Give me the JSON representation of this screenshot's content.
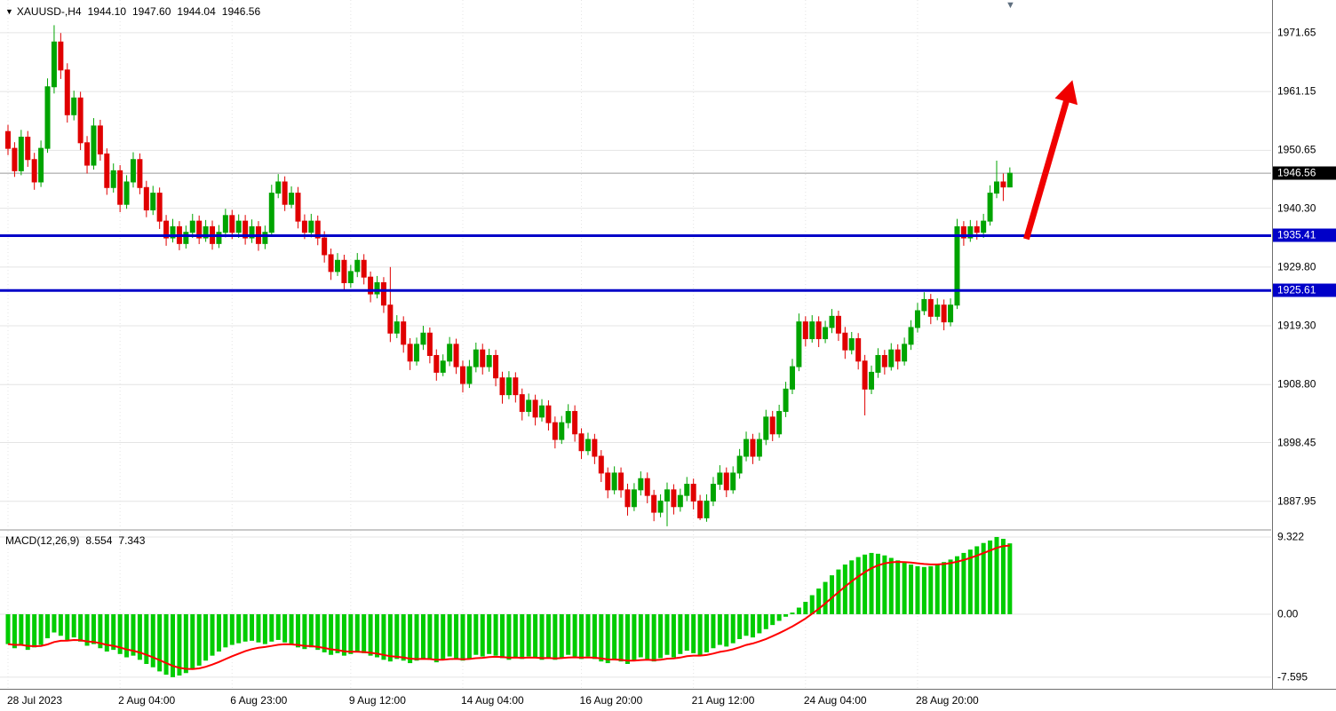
{
  "header": {
    "collapse_icon": "▼",
    "shift_icon": "▼",
    "symbol_period": "XAUUSD-,H4",
    "open": "1944.10",
    "high": "1947.60",
    "low": "1944.04",
    "close": "1946.56"
  },
  "chart_data": {
    "type": "candlestick",
    "symbol": "XAUUSD-",
    "timeframe": "H4",
    "ylim": [
      1883.0,
      1977.5
    ],
    "price_ticks": [
      {
        "label": "1971.65",
        "value": 1971.65
      },
      {
        "label": "1961.15",
        "value": 1961.15
      },
      {
        "label": "1950.65",
        "value": 1950.65
      },
      {
        "label": "1940.30",
        "value": 1940.3
      },
      {
        "label": "1929.80",
        "value": 1929.8
      },
      {
        "label": "1919.30",
        "value": 1919.3
      },
      {
        "label": "1908.80",
        "value": 1908.8
      },
      {
        "label": "1898.45",
        "value": 1898.45
      },
      {
        "label": "1887.95",
        "value": 1887.95
      }
    ],
    "current_price": {
      "label": "1946.56",
      "value": 1946.56
    },
    "horizontal_levels": [
      {
        "label": "1935.41",
        "value": 1935.41,
        "color": "#0000c8"
      },
      {
        "label": "1925.61",
        "value": 1925.61,
        "color": "#0000c8"
      }
    ],
    "time_ticks": [
      {
        "index": 0,
        "label": "28 Jul 2023"
      },
      {
        "index": 17,
        "label": "2 Aug 04:00"
      },
      {
        "index": 34,
        "label": "6 Aug 23:00"
      },
      {
        "index": 52,
        "label": "9 Aug 12:00"
      },
      {
        "index": 69,
        "label": "14 Aug 04:00"
      },
      {
        "index": 87,
        "label": "16 Aug 20:00"
      },
      {
        "index": 104,
        "label": "21 Aug 12:00"
      },
      {
        "index": 121,
        "label": "24 Aug 04:00"
      },
      {
        "index": 138,
        "label": "28 Aug 20:00"
      }
    ],
    "arrow": {
      "from": {
        "index": 154.5,
        "price": 1934.8
      },
      "to": {
        "index": 161.5,
        "price": 1963.2
      },
      "color": "#f00000"
    },
    "ohlc": [
      [
        1954,
        1955.2,
        1949.8,
        1951
      ],
      [
        1951,
        1952.1,
        1945.9,
        1947
      ],
      [
        1947,
        1954.3,
        1946.2,
        1953
      ],
      [
        1953,
        1954.1,
        1947.7,
        1949
      ],
      [
        1949,
        1950.2,
        1943.6,
        1945
      ],
      [
        1945,
        1952.4,
        1944.1,
        1951
      ],
      [
        1951,
        1963.5,
        1950.2,
        1962
      ],
      [
        1962,
        1973.0,
        1960.8,
        1970
      ],
      [
        1970,
        1971.6,
        1963.4,
        1965
      ],
      [
        1965,
        1966.2,
        1955.6,
        1957
      ],
      [
        1957,
        1961.3,
        1956.0,
        1960
      ],
      [
        1960,
        1961.1,
        1950.7,
        1952
      ],
      [
        1952,
        1953.2,
        1946.5,
        1948
      ],
      [
        1948,
        1956.4,
        1947.2,
        1955
      ],
      [
        1955,
        1956.1,
        1948.8,
        1950
      ],
      [
        1950,
        1951.0,
        1942.7,
        1944
      ],
      [
        1944,
        1948.3,
        1943.1,
        1947
      ],
      [
        1947,
        1948.0,
        1939.6,
        1941
      ],
      [
        1941,
        1946.2,
        1940.2,
        1945
      ],
      [
        1945,
        1950.3,
        1944.0,
        1949
      ],
      [
        1949,
        1950.1,
        1942.8,
        1944
      ],
      [
        1944,
        1945.2,
        1938.7,
        1940
      ],
      [
        1940,
        1944.3,
        1939.1,
        1943
      ],
      [
        1943,
        1944.0,
        1936.6,
        1938
      ],
      [
        1938,
        1939.1,
        1933.6,
        1935
      ],
      [
        1935,
        1938.4,
        1934.2,
        1937
      ],
      [
        1937,
        1938.0,
        1932.8,
        1934
      ],
      [
        1934,
        1937.2,
        1933.1,
        1936
      ],
      [
        1936,
        1939.3,
        1935.0,
        1938
      ],
      [
        1938,
        1939.0,
        1933.9,
        1935
      ],
      [
        1935,
        1938.2,
        1934.3,
        1937
      ],
      [
        1937,
        1938.1,
        1932.9,
        1934
      ],
      [
        1934,
        1937.3,
        1933.2,
        1936
      ],
      [
        1936,
        1940.2,
        1935.1,
        1939
      ],
      [
        1939,
        1940.0,
        1934.8,
        1936
      ],
      [
        1936,
        1939.2,
        1935.0,
        1938
      ],
      [
        1938,
        1939.1,
        1933.8,
        1935
      ],
      [
        1935,
        1938.3,
        1934.1,
        1937
      ],
      [
        1937,
        1938.0,
        1932.7,
        1934
      ],
      [
        1934,
        1937.2,
        1933.0,
        1936
      ],
      [
        1936,
        1944.5,
        1935.2,
        1943
      ],
      [
        1943,
        1946.4,
        1942.1,
        1945
      ],
      [
        1945,
        1946.0,
        1939.8,
        1941
      ],
      [
        1941,
        1944.2,
        1940.3,
        1943
      ],
      [
        1943,
        1944.1,
        1936.7,
        1938
      ],
      [
        1938,
        1939.2,
        1934.8,
        1936
      ],
      [
        1936,
        1939.3,
        1935.1,
        1938
      ],
      [
        1938,
        1939.0,
        1933.7,
        1935
      ],
      [
        1935,
        1936.2,
        1930.6,
        1932
      ],
      [
        1932,
        1933.1,
        1927.5,
        1929
      ],
      [
        1929,
        1932.3,
        1928.2,
        1931
      ],
      [
        1931,
        1932.0,
        1925.6,
        1927
      ],
      [
        1927,
        1930.2,
        1926.1,
        1929
      ],
      [
        1929,
        1932.3,
        1928.0,
        1931
      ],
      [
        1931,
        1932.1,
        1926.7,
        1928
      ],
      [
        1928,
        1929.0,
        1923.5,
        1925
      ],
      [
        1925,
        1928.2,
        1924.2,
        1927
      ],
      [
        1927,
        1928.0,
        1921.6,
        1923
      ],
      [
        1923,
        1929.8,
        1916.4,
        1918
      ],
      [
        1918,
        1921.2,
        1917.1,
        1920
      ],
      [
        1920,
        1921.0,
        1914.5,
        1916
      ],
      [
        1916,
        1917.1,
        1911.4,
        1913
      ],
      [
        1913,
        1917.2,
        1912.2,
        1916
      ],
      [
        1916,
        1919.3,
        1915.0,
        1918
      ],
      [
        1918,
        1919.0,
        1912.6,
        1914
      ],
      [
        1914,
        1915.1,
        1909.5,
        1911
      ],
      [
        1911,
        1914.2,
        1910.3,
        1913
      ],
      [
        1913,
        1917.3,
        1912.1,
        1916
      ],
      [
        1916,
        1917.0,
        1910.7,
        1912
      ],
      [
        1912,
        1913.1,
        1907.4,
        1909
      ],
      [
        1909,
        1913.2,
        1908.2,
        1912
      ],
      [
        1912,
        1916.3,
        1911.0,
        1915
      ],
      [
        1915,
        1916.1,
        1910.6,
        1912
      ],
      [
        1912,
        1915.2,
        1911.1,
        1914
      ],
      [
        1914,
        1915.0,
        1908.5,
        1910
      ],
      [
        1910,
        1911.1,
        1905.4,
        1907
      ],
      [
        1907,
        1911.2,
        1906.2,
        1910
      ],
      [
        1910,
        1911.0,
        1905.6,
        1907
      ],
      [
        1907,
        1908.1,
        1902.4,
        1904
      ],
      [
        1904,
        1907.2,
        1903.1,
        1906
      ],
      [
        1906,
        1907.0,
        1901.5,
        1903
      ],
      [
        1903,
        1906.2,
        1902.2,
        1905
      ],
      [
        1905,
        1906.0,
        1900.6,
        1902
      ],
      [
        1902,
        1903.1,
        1897.4,
        1899
      ],
      [
        1899,
        1903.2,
        1898.2,
        1902
      ],
      [
        1902,
        1905.3,
        1901.0,
        1904
      ],
      [
        1904,
        1905.1,
        1898.6,
        1900
      ],
      [
        1900,
        1901.0,
        1895.5,
        1897
      ],
      [
        1897,
        1900.2,
        1896.2,
        1899
      ],
      [
        1899,
        1900.0,
        1894.6,
        1896
      ],
      [
        1896,
        1897.1,
        1891.4,
        1893
      ],
      [
        1893,
        1894.0,
        1888.5,
        1890
      ],
      [
        1890,
        1894.2,
        1889.2,
        1893
      ],
      [
        1893,
        1894.0,
        1888.6,
        1890
      ],
      [
        1890,
        1891.1,
        1885.4,
        1887
      ],
      [
        1887,
        1891.2,
        1886.2,
        1890
      ],
      [
        1890,
        1893.3,
        1889.0,
        1892
      ],
      [
        1892,
        1893.1,
        1887.6,
        1889
      ],
      [
        1889,
        1890.0,
        1884.4,
        1886
      ],
      [
        1886,
        1889.2,
        1885.1,
        1888
      ],
      [
        1888,
        1891.3,
        1883.5,
        1890
      ],
      [
        1890,
        1891.0,
        1885.6,
        1887
      ],
      [
        1887,
        1890.2,
        1886.1,
        1889
      ],
      [
        1889,
        1892.3,
        1888.0,
        1891
      ],
      [
        1891,
        1892.0,
        1886.5,
        1888
      ],
      [
        1888,
        1889.1,
        1884.6,
        1885
      ],
      [
        1885,
        1889.2,
        1884.3,
        1888
      ],
      [
        1888,
        1892.3,
        1887.1,
        1891
      ],
      [
        1891,
        1894.4,
        1890.0,
        1893
      ],
      [
        1893,
        1894.0,
        1888.7,
        1890
      ],
      [
        1890,
        1894.2,
        1889.3,
        1893
      ],
      [
        1893,
        1897.3,
        1892.0,
        1896
      ],
      [
        1896,
        1900.4,
        1895.1,
        1899
      ],
      [
        1899,
        1900.0,
        1894.6,
        1896
      ],
      [
        1896,
        1900.2,
        1895.2,
        1899
      ],
      [
        1899,
        1904.3,
        1898.0,
        1903
      ],
      [
        1903,
        1904.1,
        1898.7,
        1900
      ],
      [
        1900,
        1905.2,
        1899.3,
        1904
      ],
      [
        1904,
        1909.3,
        1903.0,
        1908
      ],
      [
        1908,
        1913.4,
        1907.1,
        1912
      ],
      [
        1912,
        1921.5,
        1911.2,
        1920
      ],
      [
        1920,
        1921.0,
        1915.6,
        1917
      ],
      [
        1917,
        1921.2,
        1916.3,
        1920
      ],
      [
        1920,
        1921.0,
        1915.5,
        1917
      ],
      [
        1917,
        1920.2,
        1916.2,
        1919
      ],
      [
        1919,
        1922.3,
        1918.0,
        1921
      ],
      [
        1921,
        1922.0,
        1916.6,
        1918
      ],
      [
        1918,
        1919.1,
        1913.4,
        1915
      ],
      [
        1915,
        1918.2,
        1914.2,
        1917
      ],
      [
        1917,
        1918.0,
        1911.5,
        1913
      ],
      [
        1913,
        1914.1,
        1903.3,
        1908
      ],
      [
        1908,
        1912.2,
        1907.1,
        1911
      ],
      [
        1911,
        1915.3,
        1910.0,
        1914
      ],
      [
        1914,
        1915.0,
        1910.6,
        1912
      ],
      [
        1912,
        1916.2,
        1911.3,
        1915
      ],
      [
        1915,
        1916.0,
        1911.5,
        1913
      ],
      [
        1913,
        1917.2,
        1912.2,
        1916
      ],
      [
        1916,
        1920.3,
        1915.0,
        1919
      ],
      [
        1919,
        1923.4,
        1918.1,
        1922
      ],
      [
        1922,
        1925.3,
        1921.2,
        1924
      ],
      [
        1924,
        1925.0,
        1919.6,
        1921
      ],
      [
        1921,
        1924.2,
        1920.3,
        1923
      ],
      [
        1923,
        1924.0,
        1918.5,
        1920
      ],
      [
        1920,
        1924.2,
        1919.2,
        1923
      ],
      [
        1923,
        1938.4,
        1922.3,
        1937
      ],
      [
        1937,
        1938.0,
        1933.6,
        1935
      ],
      [
        1935,
        1938.2,
        1934.3,
        1937
      ],
      [
        1937,
        1938.1,
        1934.7,
        1936
      ],
      [
        1936,
        1939.3,
        1935.0,
        1938
      ],
      [
        1938,
        1944.4,
        1937.2,
        1943
      ],
      [
        1943,
        1948.8,
        1942.1,
        1945
      ],
      [
        1945,
        1946.5,
        1941.6,
        1944.1
      ],
      [
        1944.1,
        1947.6,
        1944.04,
        1946.56
      ]
    ],
    "macd": {
      "label": "MACD(12,26,9)",
      "value_label": "8.554",
      "signal_label": "7.343",
      "signal_period": 9,
      "ylim": [
        -9.0,
        10.07
      ],
      "ticks": [
        {
          "label": "9.322",
          "value": 9.322
        },
        {
          "label": "0.00",
          "value": 0
        },
        {
          "label": "-7.595",
          "value": -7.595
        }
      ],
      "histogram": [
        -3.6,
        -4.1,
        -3.7,
        -4.3,
        -4.0,
        -3.7,
        -2.9,
        -2.2,
        -2.6,
        -3.1,
        -2.8,
        -3.3,
        -3.8,
        -3.6,
        -4.1,
        -4.5,
        -4.3,
        -4.8,
        -5.2,
        -5.0,
        -5.5,
        -6.0,
        -6.4,
        -6.9,
        -7.3,
        -7.595,
        -7.4,
        -7.1,
        -6.7,
        -6.2,
        -5.6,
        -5.0,
        -4.5,
        -4.0,
        -3.7,
        -3.5,
        -3.3,
        -3.2,
        -3.4,
        -3.6,
        -3.3,
        -3.1,
        -3.4,
        -3.7,
        -4.0,
        -4.2,
        -4.0,
        -4.3,
        -4.6,
        -4.9,
        -4.7,
        -5.0,
        -4.8,
        -4.5,
        -4.7,
        -5.0,
        -5.2,
        -5.5,
        -5.7,
        -5.4,
        -5.6,
        -5.9,
        -5.6,
        -5.3,
        -5.5,
        -5.8,
        -5.5,
        -5.1,
        -5.3,
        -5.6,
        -5.3,
        -4.9,
        -5.1,
        -4.8,
        -5.0,
        -5.3,
        -5.5,
        -5.2,
        -5.4,
        -5.1,
        -5.3,
        -5.5,
        -5.2,
        -5.5,
        -5.2,
        -4.9,
        -5.1,
        -5.4,
        -5.1,
        -5.4,
        -5.7,
        -5.9,
        -5.5,
        -5.7,
        -6.0,
        -5.6,
        -5.2,
        -5.4,
        -5.7,
        -5.3,
        -4.9,
        -5.2,
        -4.8,
        -4.4,
        -4.7,
        -5.0,
        -4.6,
        -4.1,
        -3.7,
        -3.9,
        -3.5,
        -3.0,
        -2.6,
        -2.8,
        -2.3,
        -1.8,
        -1.3,
        -0.8,
        -0.3,
        0.2,
        0.8,
        1.5,
        2.3,
        3.1,
        3.9,
        4.7,
        5.4,
        6.0,
        6.5,
        6.9,
        7.2,
        7.4,
        7.3,
        7.1,
        6.8,
        6.5,
        6.2,
        6.0,
        5.8,
        5.7,
        5.8,
        6.0,
        6.3,
        6.6,
        7.0,
        7.4,
        7.8,
        8.2,
        8.6,
        8.9,
        9.322,
        9.1,
        8.554
      ]
    },
    "colors": {
      "background": "#ffffff",
      "grid": "#e4e4e4",
      "bullish": "#00a400",
      "bearish": "#e00000",
      "macd_histogram": "#00cc00",
      "macd_signal": "#ff0000",
      "level_line": "#0000c8",
      "current_price_line": "#9a9a9a",
      "current_price_box": "#000000",
      "arrow": "#f00000",
      "axis_text": "#000000"
    }
  }
}
